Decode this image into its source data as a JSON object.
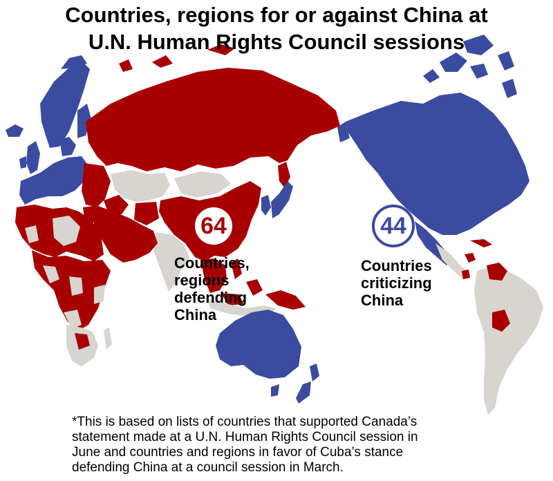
{
  "title": {
    "line1": "Countries, regions for or against China at",
    "line2": "U.N. Human Rights Council sessions"
  },
  "colors": {
    "defending": "#a80000",
    "criticizing": "#3a4ba0",
    "neutral": "#d8d4cf",
    "background": "#ffffff"
  },
  "defending": {
    "count": "64",
    "label_lines": [
      "Countries,",
      "regions",
      "defending",
      "China"
    ]
  },
  "criticizing": {
    "count": "44",
    "label_lines": [
      "Countries",
      "criticizing",
      "China"
    ]
  },
  "footnote": {
    "lines": [
      "*This is based on lists of countries that supported Canada’s",
      "statement made at a U.N. Human Rights Council session in",
      "June and countries and regions in favor of Cuba’s stance",
      "defending China at a council session in March."
    ]
  }
}
